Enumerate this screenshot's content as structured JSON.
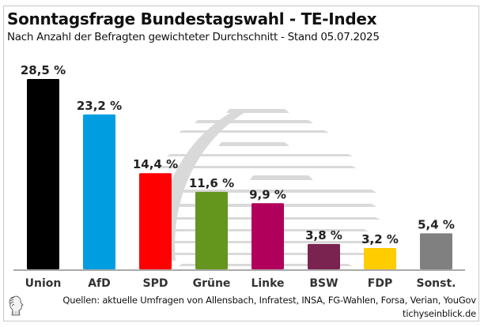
{
  "header": {
    "title": "Sonntagsfrage Bundestagswahl - TE-Index",
    "subtitle": "Nach Anzahl der Befragten gewichteter Durchschnitt - Stand 05.07.2025"
  },
  "footer": {
    "sources": "Quellen: aktuelle Umfragen von Allensbach, Infratest, INSA, FG-Wahlen, Forsa, Verian, YouGov",
    "site": "tichyseinblick.de",
    "logo_icon": "classical-head-logo-icon"
  },
  "chart_data": {
    "type": "bar",
    "title": "Sonntagsfrage Bundestagswahl - TE-Index",
    "subtitle": "Nach Anzahl der Befragten gewichteter Durchschnitt - Stand 05.07.2025",
    "xlabel": "",
    "ylabel": "",
    "ylim": [
      0,
      28.5
    ],
    "grid": false,
    "legend": "none",
    "unit": "%",
    "categories": [
      "Union",
      "AfD",
      "SPD",
      "Grüne",
      "Linke",
      "BSW",
      "FDP",
      "Sonst."
    ],
    "values": [
      28.5,
      23.2,
      14.4,
      11.6,
      9.9,
      3.8,
      3.2,
      5.4
    ],
    "labels": [
      "28,5 %",
      "23,2 %",
      "14,4 %",
      "11,6 %",
      "9,9 %",
      "3,8 %",
      "3,2 %",
      "5,4 %"
    ],
    "colors": [
      "#000000",
      "#009ee0",
      "#ff0000",
      "#64961e",
      "#b1005c",
      "#7a2350",
      "#ffcc00",
      "#808080"
    ]
  }
}
